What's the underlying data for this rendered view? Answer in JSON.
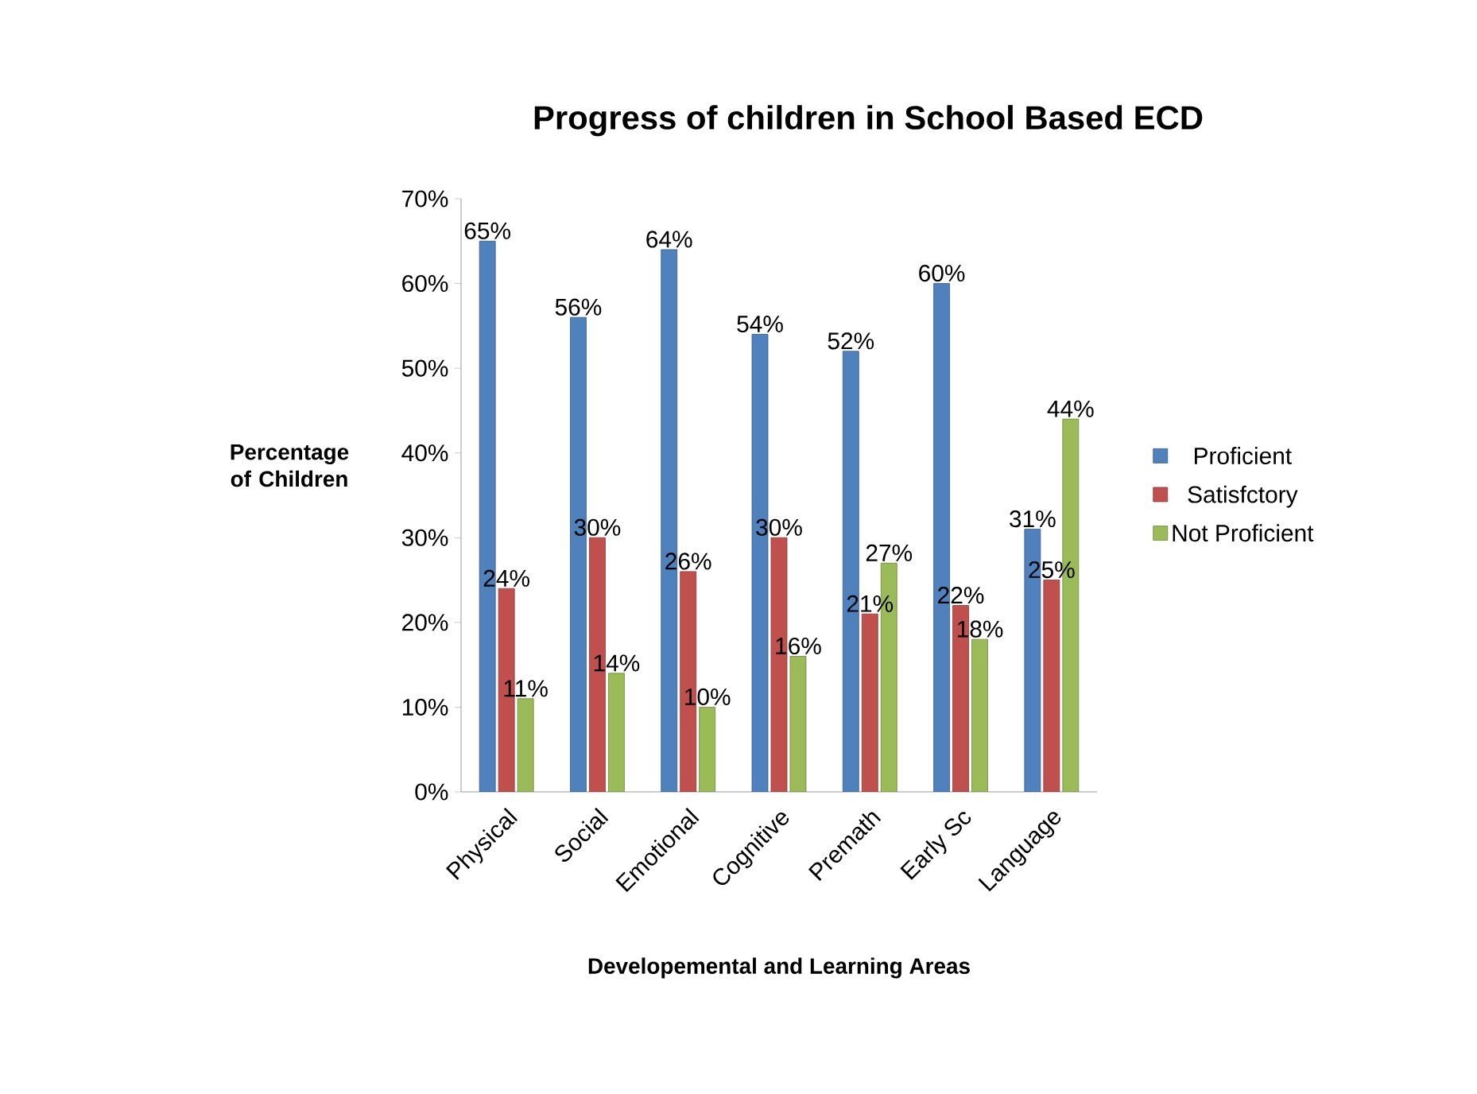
{
  "chart_data": {
    "type": "bar",
    "title": "Progress of children in School Based ECD",
    "xlabel": "Developemental and Learning Areas",
    "ylabel": "Percentage of Children",
    "categories": [
      "Physical",
      "Social",
      "Emotional",
      "Cognitive",
      "Premath",
      "Early Sc",
      "Language"
    ],
    "series": [
      {
        "name": "Proficient",
        "color": "#4f81bd",
        "values": [
          65,
          56,
          64,
          54,
          52,
          60,
          31
        ],
        "value_labels": [
          "65%",
          "56%",
          "64%",
          "54%",
          "52%",
          "60%",
          "31%"
        ]
      },
      {
        "name": "Satisfctory",
        "color": "#c0504d",
        "values": [
          24,
          30,
          26,
          30,
          21,
          22,
          25
        ],
        "value_labels": [
          "24%",
          "30%",
          "26%",
          "30%",
          "21%",
          "22%",
          "25%"
        ]
      },
      {
        "name": "Not Proficient",
        "color": "#9bbb59",
        "values": [
          11,
          14,
          10,
          16,
          27,
          18,
          44
        ],
        "value_labels": [
          "11%",
          "14%",
          "10%",
          "16%",
          "27%",
          "18%",
          "44%"
        ]
      }
    ],
    "ylim": [
      0,
      70
    ],
    "yticks": [
      {
        "value": 0,
        "label": "0%"
      },
      {
        "value": 10,
        "label": "10%"
      },
      {
        "value": 20,
        "label": "20%"
      },
      {
        "value": 30,
        "label": "30%"
      },
      {
        "value": 40,
        "label": "40%"
      },
      {
        "value": 50,
        "label": "50%"
      },
      {
        "value": 60,
        "label": "60%"
      },
      {
        "value": 70,
        "label": "70%"
      }
    ],
    "grid": false,
    "legend": "right"
  }
}
